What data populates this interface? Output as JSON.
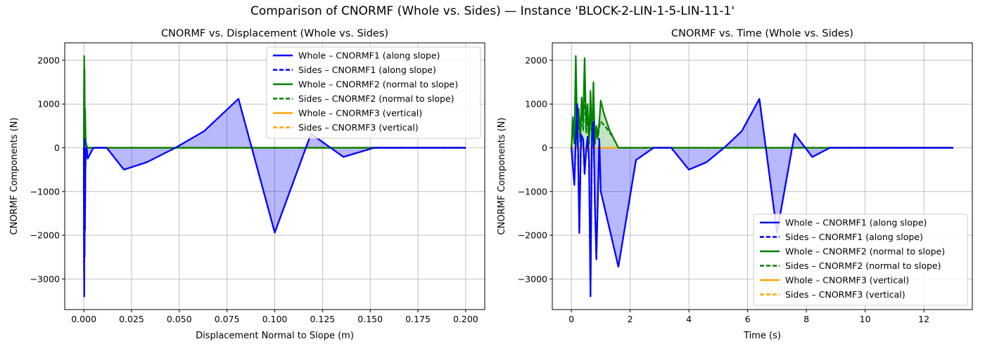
{
  "figure": {
    "suptitle": "Comparison of CNORMF (Whole vs. Sides) — Instance 'BLOCK-2-LIN-1-5-LIN-11-1'"
  },
  "chart_data": [
    {
      "type": "line",
      "title": "CNORMF vs. Displacement (Whole vs. Sides)",
      "xlabel": "Displacement Normal to Slope (m)",
      "ylabel": "CNORMF Components (N)",
      "xlim": [
        -0.01,
        0.21
      ],
      "ylim": [
        -3700,
        2400
      ],
      "xticks": [
        0.0,
        0.025,
        0.05,
        0.075,
        0.1,
        0.125,
        0.15,
        0.175,
        0.2
      ],
      "xtick_labels": [
        "0.000",
        "0.025",
        "0.050",
        "0.075",
        "0.100",
        "0.125",
        "0.150",
        "0.175",
        "0.200"
      ],
      "yticks": [
        -3000,
        -2000,
        -1000,
        0,
        1000,
        2000
      ],
      "ytick_labels": [
        "−3000",
        "−2000",
        "−1000",
        "0",
        "1000",
        "2000"
      ],
      "grid": true,
      "legend_position": "top-right",
      "fill_series": "Whole – CNORMF1 (along slope)",
      "series": [
        {
          "name": "Whole – CNORMF1 (along slope)",
          "color": "#0000ff",
          "style": "solid",
          "x": [
            0.0,
            0.0001,
            0.0002,
            0.0003,
            0.0004,
            0.0005,
            0.0006,
            0.0008,
            0.001,
            0.0015,
            0.002,
            0.005,
            0.012,
            0.021,
            0.033,
            0.048,
            0.063,
            0.081,
            0.1,
            0.119,
            0.136,
            0.152,
            0.175,
            0.2
          ],
          "y": [
            0,
            -2600,
            -3400,
            -1200,
            -2500,
            200,
            -1900,
            -600,
            -100,
            0,
            -250,
            0,
            0,
            -500,
            -330,
            0,
            380,
            1120,
            -1940,
            320,
            -210,
            0,
            0,
            0
          ]
        },
        {
          "name": "Sides – CNORMF1 (along slope)",
          "color": "#0000ff",
          "style": "dashed",
          "x": [
            0.0,
            0.0001,
            0.0002,
            0.0003,
            0.0004,
            0.0005,
            0.0006,
            0.0008,
            0.001,
            0.0015,
            0.002,
            0.005,
            0.012,
            0.021,
            0.033,
            0.048,
            0.063,
            0.081,
            0.1,
            0.119,
            0.136,
            0.152,
            0.175,
            0.2
          ],
          "y": [
            0,
            -2600,
            -3400,
            -1200,
            -2500,
            200,
            -1900,
            -600,
            -100,
            0,
            -250,
            0,
            0,
            -500,
            -330,
            0,
            380,
            1120,
            -1940,
            320,
            -210,
            0,
            0,
            0
          ]
        },
        {
          "name": "Whole – CNORMF2 (normal to slope)",
          "color": "#008000",
          "style": "solid",
          "x": [
            0.0,
            0.0001,
            0.0002,
            0.0003,
            0.0004,
            0.0005,
            0.0007,
            0.001,
            0.0015,
            0.002,
            0.2
          ],
          "y": [
            0,
            1500,
            2100,
            700,
            1800,
            400,
            900,
            150,
            50,
            0,
            0
          ]
        },
        {
          "name": "Sides – CNORMF2 (normal to slope)",
          "color": "#008000",
          "style": "dashed",
          "x": [
            0.0,
            0.0001,
            0.0002,
            0.0003,
            0.0004,
            0.0005,
            0.0007,
            0.001,
            0.0015,
            0.002,
            0.2
          ],
          "y": [
            0,
            1200,
            1700,
            500,
            1300,
            300,
            600,
            100,
            30,
            0,
            0
          ]
        },
        {
          "name": "Whole – CNORMF3 (vertical)",
          "color": "#ffa500",
          "style": "solid",
          "x": [
            0.0,
            0.2
          ],
          "y": [
            0,
            0
          ]
        },
        {
          "name": "Sides – CNORMF3 (vertical)",
          "color": "#ffa500",
          "style": "dashed",
          "x": [
            0.0,
            0.2
          ],
          "y": [
            0,
            0
          ]
        }
      ]
    },
    {
      "type": "line",
      "title": "CNORMF vs. Time (Whole vs. Sides)",
      "xlabel": "Time (s)",
      "ylabel": "CNORMF Components (N)",
      "xlim": [
        -0.65,
        13.65
      ],
      "ylim": [
        -3700,
        2400
      ],
      "xticks": [
        0,
        2,
        4,
        6,
        8,
        10,
        12
      ],
      "xtick_labels": [
        "0",
        "2",
        "4",
        "6",
        "8",
        "10",
        "12"
      ],
      "yticks": [
        -3000,
        -2000,
        -1000,
        0,
        1000,
        2000
      ],
      "ytick_labels": [
        "−3000",
        "−2000",
        "−1000",
        "0",
        "1000",
        "2000"
      ],
      "grid": true,
      "legend_position": "lower-right",
      "fill_series": "Whole – CNORMF1 (along slope)",
      "fill_series_2": "Whole – CNORMF2 (normal to slope)",
      "series": [
        {
          "name": "Whole – CNORMF1 (along slope)",
          "color": "#0000ff",
          "style": "solid",
          "x": [
            0.0,
            0.1,
            0.15,
            0.2,
            0.27,
            0.33,
            0.4,
            0.45,
            0.5,
            0.55,
            0.6,
            0.65,
            0.7,
            0.75,
            0.8,
            0.85,
            0.9,
            0.95,
            1.0,
            1.6,
            2.2,
            2.8,
            3.4,
            4.0,
            4.6,
            5.2,
            5.8,
            6.4,
            7.0,
            7.6,
            8.2,
            8.8,
            10.0,
            13.0
          ],
          "y": [
            0,
            -850,
            200,
            1000,
            -1950,
            300,
            200,
            -600,
            -100,
            250,
            -300,
            -3400,
            200,
            600,
            -1300,
            -2550,
            -1200,
            200,
            -1000,
            -2720,
            -280,
            0,
            0,
            -500,
            -330,
            0,
            380,
            1120,
            -1940,
            320,
            -210,
            0,
            0,
            0
          ]
        },
        {
          "name": "Sides – CNORMF1 (along slope)",
          "color": "#0000ff",
          "style": "dashed",
          "x": [
            0.0,
            0.1,
            0.15,
            0.2,
            0.27,
            0.33,
            0.4,
            0.45,
            0.5,
            0.55,
            0.6,
            0.65,
            0.7,
            0.75,
            0.8,
            0.85,
            0.9,
            0.95,
            1.0,
            1.6,
            2.2,
            2.8,
            3.4,
            4.0,
            4.6,
            5.2,
            5.8,
            6.4,
            7.0,
            7.6,
            8.2,
            8.8,
            10.0,
            13.0
          ],
          "y": [
            0,
            -850,
            200,
            1000,
            -1950,
            300,
            200,
            -600,
            -100,
            250,
            -300,
            -3400,
            200,
            600,
            -1300,
            -2550,
            -1200,
            200,
            -1000,
            -2720,
            -280,
            0,
            0,
            -500,
            -330,
            0,
            380,
            1120,
            -1940,
            320,
            -210,
            0,
            0,
            0
          ]
        },
        {
          "name": "Whole – CNORMF2 (normal to slope)",
          "color": "#008000",
          "style": "solid",
          "x": [
            0.0,
            0.05,
            0.1,
            0.15,
            0.2,
            0.25,
            0.3,
            0.35,
            0.4,
            0.45,
            0.5,
            0.55,
            0.6,
            0.65,
            0.7,
            0.75,
            0.8,
            0.85,
            0.9,
            0.95,
            1.0,
            1.1,
            1.3,
            1.6,
            13.0
          ],
          "y": [
            0,
            700,
            100,
            2100,
            300,
            900,
            200,
            1150,
            600,
            2050,
            500,
            1000,
            100,
            1300,
            200,
            1500,
            100,
            500,
            250,
            600,
            1080,
            800,
            400,
            0,
            0
          ]
        },
        {
          "name": "Sides – CNORMF2 (normal to slope)",
          "color": "#008000",
          "style": "dashed",
          "x": [
            0.0,
            0.05,
            0.1,
            0.15,
            0.2,
            0.25,
            0.3,
            0.35,
            0.4,
            0.45,
            0.5,
            0.55,
            0.6,
            0.65,
            0.7,
            0.75,
            0.8,
            0.85,
            0.9,
            0.95,
            1.0,
            1.2,
            1.4,
            1.6,
            13.0
          ],
          "y": [
            0,
            500,
            80,
            1500,
            200,
            700,
            150,
            900,
            400,
            1500,
            350,
            700,
            80,
            900,
            150,
            1100,
            80,
            400,
            200,
            500,
            600,
            450,
            250,
            0,
            0
          ]
        },
        {
          "name": "Whole – CNORMF3 (vertical)",
          "color": "#ffa500",
          "style": "solid",
          "x": [
            0.0,
            13.0
          ],
          "y": [
            0,
            0
          ]
        },
        {
          "name": "Sides – CNORMF3 (vertical)",
          "color": "#ffa500",
          "style": "dashed",
          "x": [
            0.0,
            13.0
          ],
          "y": [
            0,
            0
          ]
        }
      ]
    }
  ]
}
